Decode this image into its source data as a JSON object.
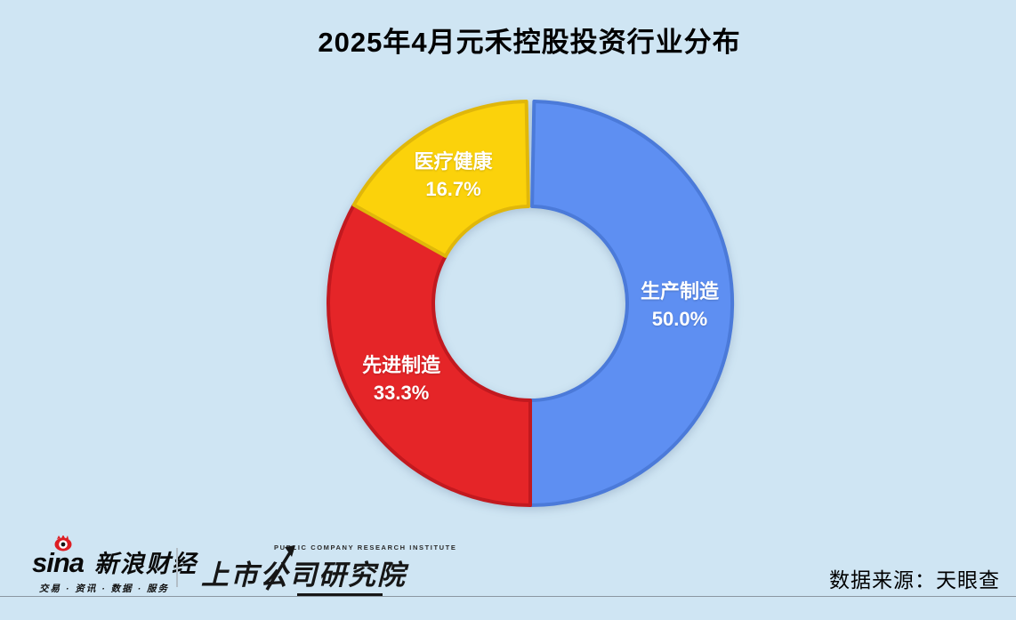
{
  "page": {
    "background": "#cfe5f3"
  },
  "title": "2025年4月元禾控股投资行业分布",
  "chart_data": {
    "type": "pie",
    "subtype": "donut",
    "title": "2025年4月元禾控股投资行业分布",
    "legend_position": "none",
    "direction": "clockwise",
    "start_angle": "12-oclock",
    "inner_radius_ratio": 0.48,
    "segments": [
      {
        "label": "生产制造",
        "value": 50.0,
        "value_label": "50.0%",
        "color": "#5E8FF2",
        "border_color": "#4B7AD9"
      },
      {
        "label": "先进制造",
        "value": 33.3,
        "value_label": "33.3%",
        "color": "#E52528",
        "border_color": "#C2191F"
      },
      {
        "label": "医疗健康",
        "value": 16.7,
        "value_label": "16.7%",
        "color": "#FBD20B",
        "border_color": "#E0B70A"
      }
    ]
  },
  "footer": {
    "sina": {
      "wordmark": "sina",
      "brand_cn": "新浪财经",
      "tagline": "交易 · 资讯 · 数据 · 服务"
    },
    "institute": {
      "en": "PUBLIC COMPANY RESEARCH INSTITUTE",
      "cn": "上市公司研究院"
    },
    "source": "数据来源：天眼查"
  }
}
